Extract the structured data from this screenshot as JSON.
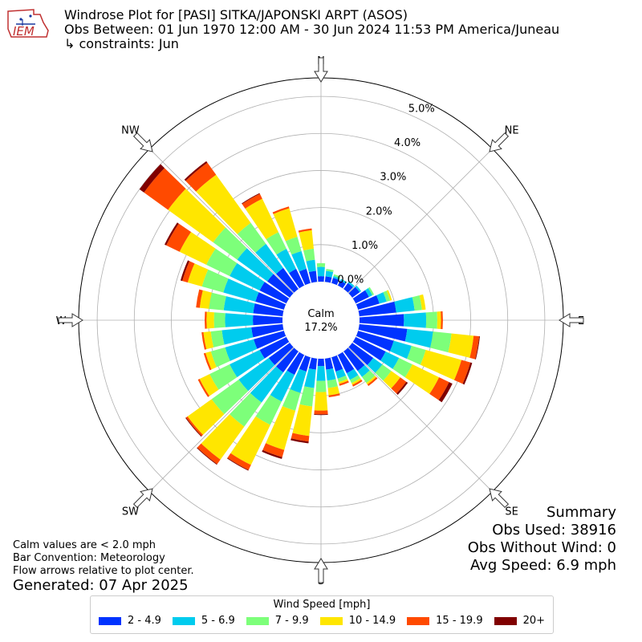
{
  "logo": {
    "text": "IEM",
    "icon": "iem-logo-icon"
  },
  "header": {
    "title": "Windrose Plot for [PASI] SITKA/JAPONSKI ARPT (ASOS)",
    "period": "Obs Between: 01 Jun 1970 12:00 AM - 30 Jun 2024 11:53 PM America/Juneau",
    "constraints": "↳ constraints: Jun"
  },
  "notes": {
    "calm_note": "Calm values are < 2.0 mph",
    "bar_convention": "Bar Convention: Meteorology",
    "flow_note": "Flow arrows relative to plot center.",
    "generated": "Generated: 07 Apr 2025"
  },
  "summary": {
    "heading": "Summary",
    "obs_used": "Obs Used: 38916",
    "obs_without_wind": "Obs Without Wind: 0",
    "avg_speed": "Avg Speed: 6.9 mph"
  },
  "center": {
    "label": "Calm",
    "value": "17.2%"
  },
  "legend_title": "Wind Speed [mph]",
  "chart_data": {
    "type": "windrose",
    "calm_percent": 17.2,
    "rlim": [
      0,
      5.5
    ],
    "radial_ticks": [
      {
        "value": 0,
        "label": "0.0%"
      },
      {
        "value": 1,
        "label": "1.0%"
      },
      {
        "value": 2,
        "label": "2.0%"
      },
      {
        "value": 3,
        "label": "3.0%"
      },
      {
        "value": 4,
        "label": "4.0%"
      },
      {
        "value": 5,
        "label": "5.0%"
      }
    ],
    "direction_labels": [
      {
        "label": "N",
        "deg": 0
      },
      {
        "label": "NE",
        "deg": 45
      },
      {
        "label": "E",
        "deg": 90
      },
      {
        "label": "SE",
        "deg": 135
      },
      {
        "label": "S",
        "deg": 180
      },
      {
        "label": "SW",
        "deg": 225
      },
      {
        "label": "W",
        "deg": 270
      },
      {
        "label": "NW",
        "deg": 315
      }
    ],
    "directions_deg": [
      0,
      10,
      20,
      30,
      40,
      50,
      60,
      70,
      80,
      90,
      100,
      110,
      120,
      130,
      140,
      150,
      160,
      170,
      180,
      190,
      200,
      210,
      220,
      230,
      240,
      250,
      260,
      270,
      280,
      290,
      300,
      310,
      320,
      330,
      340,
      350
    ],
    "series": [
      {
        "name": "2 - 4.9",
        "color": "#0033ff",
        "values": [
          0.15,
          0.15,
          0.15,
          0.15,
          0.2,
          0.25,
          0.4,
          0.6,
          1.0,
          1.2,
          1.3,
          1.0,
          0.9,
          0.7,
          0.65,
          0.55,
          0.4,
          0.3,
          0.2,
          0.3,
          0.4,
          0.6,
          0.7,
          0.7,
          0.8,
          0.85,
          0.85,
          0.8,
          0.8,
          0.8,
          0.8,
          0.75,
          0.7,
          0.5,
          0.4,
          0.3
        ]
      },
      {
        "name": "5 - 6.9",
        "color": "#00ccee",
        "values": [
          0.25,
          0.15,
          0.05,
          0.05,
          0.05,
          0.05,
          0.1,
          0.2,
          0.5,
          0.6,
          0.7,
          0.5,
          0.4,
          0.3,
          0.2,
          0.2,
          0.2,
          0.3,
          0.4,
          0.5,
          0.6,
          0.8,
          1.0,
          1.0,
          0.9,
          0.8,
          0.8,
          0.75,
          0.8,
          0.9,
          0.9,
          1.0,
          0.8,
          0.6,
          0.5,
          0.3
        ]
      },
      {
        "name": "7 - 9.9",
        "color": "#7dff7a",
        "values": [
          0.1,
          0.05,
          0.05,
          0.0,
          0.0,
          0.0,
          0.05,
          0.1,
          0.2,
          0.3,
          0.5,
          0.4,
          0.4,
          0.3,
          0.2,
          0.1,
          0.1,
          0.2,
          0.3,
          0.5,
          0.5,
          0.7,
          0.8,
          0.9,
          0.6,
          0.4,
          0.3,
          0.3,
          0.4,
          0.6,
          0.7,
          0.8,
          0.7,
          0.5,
          0.4,
          0.3
        ]
      },
      {
        "name": "10 - 14.9",
        "color": "#ffe600",
        "values": [
          0.0,
          0.0,
          0.0,
          0.0,
          0.0,
          0.0,
          0.0,
          0.05,
          0.1,
          0.1,
          0.6,
          1.0,
          0.8,
          0.3,
          0.05,
          0.05,
          0.05,
          0.2,
          0.5,
          0.8,
          1.1,
          1.2,
          1.1,
          0.8,
          0.3,
          0.15,
          0.2,
          0.2,
          0.25,
          0.4,
          0.8,
          1.5,
          1.6,
          1.0,
          0.8,
          0.5
        ]
      },
      {
        "name": "15 - 19.9",
        "color": "#ff4a00",
        "values": [
          0.0,
          0.0,
          0.0,
          0.0,
          0.0,
          0.0,
          0.0,
          0.0,
          0.0,
          0.05,
          0.15,
          0.25,
          0.3,
          0.2,
          0.05,
          0.05,
          0.05,
          0.05,
          0.1,
          0.15,
          0.2,
          0.15,
          0.15,
          0.05,
          0.05,
          0.05,
          0.05,
          0.05,
          0.1,
          0.15,
          0.4,
          0.8,
          0.4,
          0.15,
          0.05,
          0.05
        ]
      },
      {
        "name": "20+",
        "color": "#800000",
        "values": [
          0.0,
          0.0,
          0.0,
          0.0,
          0.0,
          0.0,
          0.0,
          0.0,
          0.0,
          0.0,
          0.02,
          0.05,
          0.1,
          0.05,
          0.0,
          0.0,
          0.0,
          0.0,
          0.02,
          0.05,
          0.05,
          0.02,
          0.02,
          0.02,
          0.0,
          0.0,
          0.0,
          0.0,
          0.0,
          0.05,
          0.05,
          0.15,
          0.05,
          0.02,
          0.0,
          0.0
        ]
      }
    ]
  }
}
